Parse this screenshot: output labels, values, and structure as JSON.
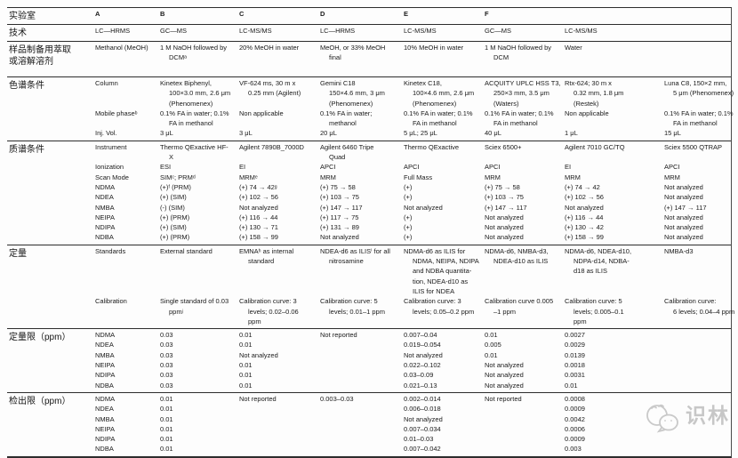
{
  "watermark": {
    "text": "识林",
    "logo": "shilin-speech-bubble-logo",
    "color": "#c7c7c7"
  },
  "table": {
    "sections": [
      {
        "key": "laboratory",
        "label": "实验室",
        "bold": true,
        "rows": [
          [
            "A",
            "B",
            "C",
            "D",
            "E",
            "F",
            "",
            ""
          ]
        ]
      },
      {
        "key": "technique",
        "label": "技术",
        "bold": false,
        "rows": [
          [
            "LC—HRMS",
            "GC—MS",
            "LC-MS/MS",
            "LC—HRMS",
            "LC-MS/MS",
            "GC—MS",
            "LC-MS/MS",
            ""
          ]
        ]
      },
      {
        "key": "sample-prep",
        "label": "样品制备用萃取\n或溶解溶剂",
        "bold": false,
        "rows": [
          [
            "Methanol (MeOH)",
            "1 M NaOH followed by\nDCMᵃ",
            "20% MeOH in water",
            "MeOH, or 33% MeOH\nfinal",
            "10% MeOH in water",
            "1 M NaOH followed by\nDCM",
            "Water",
            ""
          ]
        ]
      },
      {
        "key": "chromatography",
        "label": "色谱条件",
        "bold": false,
        "rows": [
          [
            "Column",
            "Kinetex Biphenyl,\n100×3.0 mm, 2.6 μm\n(Phenomenex)",
            "VF-624 ms, 30 m x\n0.25 mm (Agilent)",
            "Gemini C18\n150×4.6 mm, 3 μm\n(Phenomenex)",
            "Kinetex C18,\n100×4.6 mm, 2.6 μm\n(Phenomenex)",
            "ACQUITY UPLC HSS T3,\n250×3 mm, 3.5 μm\n(Waters)",
            "Rtx-624; 30 m x\n0.32 mm, 1.8 μm\n(Restek)",
            "Luna C8, 150×2 mm,\n5 μm (Phenomenex)"
          ],
          [
            "Mobile phaseᵇ",
            "0.1% FA in water; 0.1%\nFA in methanol",
            "Non applicable",
            "0.1% FA in water;\nmethanol",
            "0.1% FA in water; 0.1%\nFA in methanol",
            "0.1% FA in water; 0.1%\nFA in methanol",
            "Non applicable",
            "0.1% FA in water; 0.1%\nFA in methanol"
          ],
          [
            "Inj. Vol.",
            "3 μL",
            "3 μL",
            "20 μL",
            "5 μL; 25 μL",
            "40 μL",
            "1 μL",
            "15 μL"
          ]
        ]
      },
      {
        "key": "ms-conditions",
        "label": "质谱条件",
        "bold": false,
        "rows": [
          [
            "Instrument",
            "Thermo QExactive HF-\nX",
            "Agilent 7890B_7000D",
            "Agilent 6460 Tripe\nQuad",
            "Thermo QExactive",
            "Sciex 6500+",
            "Agilent 7010 GC/TQ",
            "Sciex 5500 QTRAP"
          ],
          [
            "Ionization",
            "ESI",
            "EI",
            "APCI",
            "APCI",
            "APCI",
            "EI",
            "APCI"
          ],
          [
            "Scan Mode",
            "SIMᶜ; PRMᵈ",
            "MRMᵉ",
            "MRM",
            "Full Mass",
            "MRM",
            "MRM",
            "MRM"
          ],
          [
            "NDMA",
            "(+)ᶠ (PRM)",
            "(+) 74 → 42ᵍ",
            "(+) 75 → 58",
            "(+)",
            "(+) 75 → 58",
            "(+) 74 → 42",
            "Not analyzed"
          ],
          [
            "NDEA",
            "(+) (SIM)",
            "(+) 102 → 56",
            "(+) 103 → 75",
            "(+)",
            "(+) 103 → 75",
            "(+) 102 → 56",
            "Not analyzed"
          ],
          [
            "NMBA",
            "(-) (SIM)",
            "Not analyzed",
            "(+) 147 → 117",
            "Not analyzed",
            "(+) 147 → 117",
            "Not analyzed",
            "(+) 147 → 117"
          ],
          [
            "NEIPA",
            "(+) (PRM)",
            "(+) 116 → 44",
            "(+) 117 → 75",
            "(+)",
            "Not analyzed",
            "(+) 116 → 44",
            "Not analyzed"
          ],
          [
            "NDIPA",
            "(+) (SIM)",
            "(+) 130 → 71",
            "(+) 131 → 89",
            "(+)",
            "Not analyzed",
            "(+) 130 → 42",
            "Not analyzed"
          ],
          [
            "NDBA",
            "(+) (PRM)",
            "(+) 158 → 99",
            "Not analyzed",
            "(+)",
            "Not analyzed",
            "(+) 158 → 99",
            "Not analyzed"
          ]
        ]
      },
      {
        "key": "quantitation",
        "label": "定量",
        "bold": false,
        "rows": [
          [
            "Standards",
            "External standard",
            "EMNAʰ as internal\nstandard",
            "NDEA-d6 as ILISⁱ for all\nnitrosamine",
            "NDMA-d6 as ILIS for\nNDMA, NEIPA, NDIPA\nand NDBA quantita-\ntion, NDEA-d10 as\nILIS for NDEA",
            "NDMA-d6, NMBA-d3,\nNDEA-d10 as ILIS",
            "NDMA-d6, NDEA-d10,\nNDPA-d14, NDBA-\nd18 as ILIS",
            "NMBA-d3"
          ],
          [
            "Calibration",
            "Single standard of 0.03\nppmʲ",
            "Calibration curve: 3\nlevels; 0.02–0.06\nppm",
            "Calibration curve: 5\nlevels; 0.01–1 ppm",
            "Calibration curve: 3\nlevels; 0.05–0.2 ppm",
            "Calibration curve 0.005\n–1 ppm",
            "Calibration curve: 5\nlevels; 0.005–0.1\nppm",
            "Calibration curve:\n6 levels; 0.04–4 ppm"
          ]
        ]
      },
      {
        "key": "loq",
        "label": "定量限（ppm）",
        "bold": false,
        "rows": [
          [
            "NDMA",
            "0.03",
            "0.01",
            "Not reported",
            "0.007–0.04",
            "0.01",
            "0.0027",
            ""
          ],
          [
            "NDEA",
            "0.03",
            "0.01",
            "",
            "0.019–0.054",
            "0.005",
            "0.0029",
            ""
          ],
          [
            "NMBA",
            "0.03",
            "Not analyzed",
            "",
            "Not analyzed",
            "0.01",
            "0.0139",
            ""
          ],
          [
            "NEIPA",
            "0.03",
            "0.01",
            "",
            "0.022–0.102",
            "Not analyzed",
            "0.0018",
            ""
          ],
          [
            "NDIPA",
            "0.03",
            "0.01",
            "",
            "0.03–0.09",
            "Not analyzed",
            "0.0031",
            ""
          ],
          [
            "NDBA",
            "0.03",
            "0.01",
            "",
            "0.021–0.13",
            "Not analyzed",
            "0.01",
            ""
          ]
        ]
      },
      {
        "key": "lod",
        "label": "检出限（ppm）",
        "bold": false,
        "rows": [
          [
            "NDMA",
            "0.01",
            "Not reported",
            "0.003–0.03",
            "0.002–0.014",
            "Not reported",
            "0.0008",
            ""
          ],
          [
            "NDEA",
            "0.01",
            "",
            "",
            "0.006–0.018",
            "",
            "0.0009",
            ""
          ],
          [
            "NMBA",
            "0.01",
            "",
            "",
            "Not analyzed",
            "",
            "0.0042",
            ""
          ],
          [
            "NEIPA",
            "0.01",
            "",
            "",
            "0.007–0.034",
            "",
            "0.0006",
            ""
          ],
          [
            "NDIPA",
            "0.01",
            "",
            "",
            "0.01–0.03",
            "",
            "0.0009",
            ""
          ],
          [
            "NDBA",
            "0.01",
            "",
            "",
            "0.007–0.042",
            "",
            "0.003",
            ""
          ]
        ]
      }
    ]
  }
}
